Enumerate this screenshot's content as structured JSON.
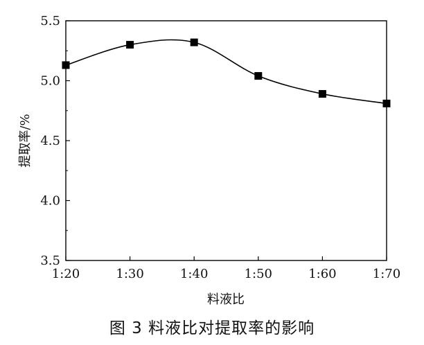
{
  "caption": "图 3 料液比对提取率的影响",
  "chart_data": {
    "type": "line",
    "xlabel": "料液比",
    "ylabel": "提取率/%",
    "categories": [
      "1:20",
      "1:30",
      "1:40",
      "1:50",
      "1:60",
      "1:70"
    ],
    "series": [
      {
        "values": [
          5.13,
          5.3,
          5.32,
          5.04,
          4.89,
          4.81
        ]
      }
    ],
    "ylim": [
      3.5,
      5.5
    ],
    "yticks": [
      "3.5",
      "4.0",
      "4.5",
      "5.0",
      "5.5"
    ],
    "grid": false,
    "marker": "square",
    "line_style": "smooth"
  }
}
